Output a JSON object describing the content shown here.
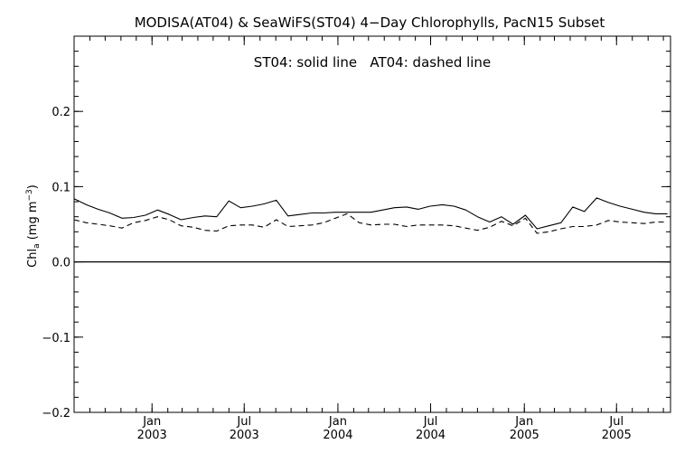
{
  "chart_data": {
    "type": "line",
    "title": "MODISA(AT04) & SeaWiFS(ST04) 4−Day Chlorophylls, PacN15 Subset",
    "annotation": "ST04: solid line   AT04: dashed line",
    "ylabel": {
      "main": "Chl",
      "sub": "a",
      "mid": " (mg m",
      "sup": "−3",
      "end": ")"
    },
    "xlim": [
      "2002-08-01",
      "2005-10-15"
    ],
    "ylim": [
      -0.2,
      0.3
    ],
    "grid": false,
    "zero_line": true,
    "y_ticks": [
      {
        "value": -0.2,
        "label": "−0.2"
      },
      {
        "value": -0.1,
        "label": "−0.1"
      },
      {
        "value": 0.0,
        "label": "0.0"
      },
      {
        "value": 0.1,
        "label": "0.1"
      },
      {
        "value": 0.2,
        "label": "0.2"
      }
    ],
    "x_ticks": [
      {
        "date": "2003-01-01",
        "month": "Jan",
        "year": "2003"
      },
      {
        "date": "2003-07-01",
        "month": "Jul",
        "year": "2003"
      },
      {
        "date": "2004-01-01",
        "month": "Jan",
        "year": "2004"
      },
      {
        "date": "2004-07-01",
        "month": "Jul",
        "year": "2004"
      },
      {
        "date": "2005-01-01",
        "month": "Jan",
        "year": "2005"
      },
      {
        "date": "2005-07-01",
        "month": "Jul",
        "year": "2005"
      }
    ],
    "x": [
      "2002-08-01",
      "2002-08-25",
      "2002-09-17",
      "2002-10-10",
      "2002-11-03",
      "2002-11-26",
      "2002-12-19",
      "2003-01-12",
      "2003-02-04",
      "2003-02-27",
      "2003-03-23",
      "2003-04-15",
      "2003-05-08",
      "2003-06-01",
      "2003-06-24",
      "2003-07-17",
      "2003-08-09",
      "2003-09-02",
      "2003-09-25",
      "2003-10-18",
      "2003-11-11",
      "2003-12-04",
      "2003-12-27",
      "2004-01-19",
      "2004-02-12",
      "2004-03-06",
      "2004-03-29",
      "2004-04-21",
      "2004-05-15",
      "2004-06-07",
      "2004-06-30",
      "2004-07-24",
      "2004-08-16",
      "2004-09-08",
      "2004-10-01",
      "2004-10-25",
      "2004-11-17",
      "2004-12-10",
      "2005-01-03",
      "2005-01-26",
      "2005-02-18",
      "2005-03-14",
      "2005-04-06",
      "2005-04-29",
      "2005-05-23",
      "2005-06-15",
      "2005-07-08",
      "2005-08-01",
      "2005-08-24",
      "2005-09-16",
      "2005-10-09"
    ],
    "series": [
      {
        "name": "ST04",
        "style": "solid",
        "values": [
          0.084,
          0.076,
          0.07,
          0.065,
          0.058,
          0.059,
          0.062,
          0.069,
          0.063,
          0.056,
          0.059,
          0.061,
          0.06,
          0.081,
          0.072,
          0.074,
          0.077,
          0.082,
          0.061,
          0.063,
          0.065,
          0.065,
          0.066,
          0.066,
          0.066,
          0.066,
          0.069,
          0.072,
          0.073,
          0.07,
          0.074,
          0.076,
          0.074,
          0.069,
          0.06,
          0.053,
          0.06,
          0.05,
          0.062,
          0.044,
          0.048,
          0.052,
          0.073,
          0.067,
          0.085,
          0.079,
          0.074,
          0.07,
          0.066,
          0.064,
          0.064
        ]
      },
      {
        "name": "AT04",
        "style": "dashed",
        "values": [
          0.056,
          0.052,
          0.05,
          0.048,
          0.045,
          0.052,
          0.055,
          0.06,
          0.056,
          0.048,
          0.046,
          0.042,
          0.041,
          0.048,
          0.049,
          0.049,
          0.046,
          0.056,
          0.047,
          0.048,
          0.049,
          0.052,
          0.058,
          0.064,
          0.052,
          0.049,
          0.05,
          0.05,
          0.047,
          0.049,
          0.049,
          0.049,
          0.048,
          0.045,
          0.042,
          0.046,
          0.054,
          0.048,
          0.058,
          0.038,
          0.04,
          0.044,
          0.047,
          0.047,
          0.049,
          0.055,
          0.053,
          0.052,
          0.051,
          0.053,
          0.053
        ]
      }
    ]
  }
}
